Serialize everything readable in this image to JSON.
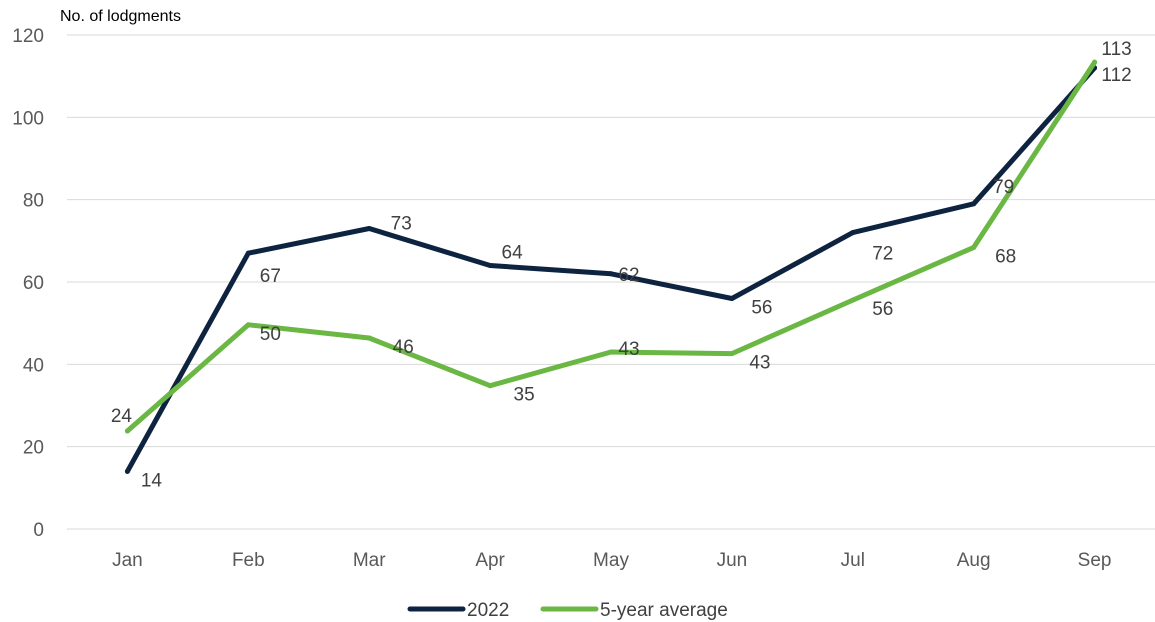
{
  "chart_data": {
    "type": "line",
    "title": "",
    "ylabel": "No. of lodgments",
    "xlabel": "",
    "categories": [
      "Jan",
      "Feb",
      "Mar",
      "Apr",
      "May",
      "Jun",
      "Jul",
      "Aug",
      "Sep"
    ],
    "ylim": [
      0,
      120
    ],
    "yticks": [
      0,
      20,
      40,
      60,
      80,
      100,
      120
    ],
    "grid": true,
    "legend_position": "bottom",
    "series": [
      {
        "name": "2022",
        "color": "#0d2340",
        "values": [
          14,
          67,
          73,
          64,
          62,
          56,
          72,
          79,
          112
        ],
        "labels": [
          "14",
          "67",
          "73",
          "64",
          "62",
          "56",
          "72",
          "79",
          "112"
        ]
      },
      {
        "name": "5-year average",
        "color": "#6ab744",
        "values": [
          23.8,
          49.6,
          46.4,
          34.8,
          43,
          42.6,
          55.6,
          68.4,
          113.4
        ],
        "labels": [
          "24",
          "50",
          "46",
          "35",
          "43",
          "43",
          "56",
          "68",
          "113"
        ]
      }
    ]
  }
}
